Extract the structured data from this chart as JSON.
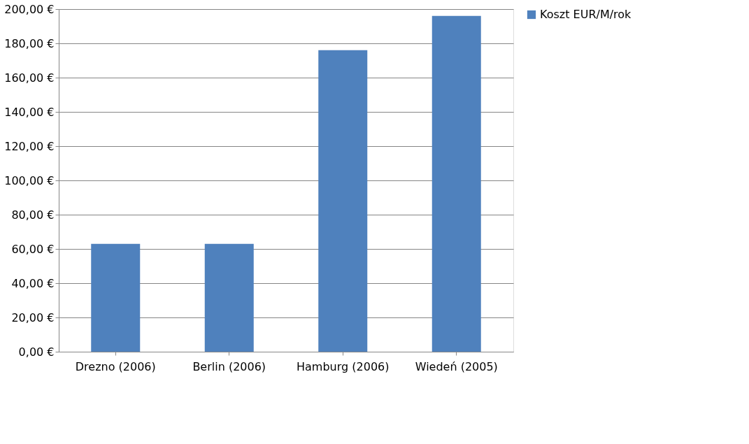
{
  "chart_data": {
    "type": "bar",
    "categories": [
      "Drezno (2006)",
      "Berlin (2006)",
      "Hamburg (2006)",
      "Wiedeń (2005)"
    ],
    "series": [
      {
        "name": "Koszt EUR/M/rok",
        "color": "#4f81bd",
        "values": [
          63,
          63,
          176,
          196
        ]
      }
    ],
    "ylim": [
      0,
      200
    ],
    "yticks": [
      {
        "value": 0,
        "label": "0,00 €"
      },
      {
        "value": 20,
        "label": "20,00 €"
      },
      {
        "value": 40,
        "label": "40,00 €"
      },
      {
        "value": 60,
        "label": "60,00 €"
      },
      {
        "value": 80,
        "label": "80,00 €"
      },
      {
        "value": 100,
        "label": "100,00 €"
      },
      {
        "value": 120,
        "label": "120,00 €"
      },
      {
        "value": 140,
        "label": "140,00 €"
      },
      {
        "value": 160,
        "label": "160,00 €"
      },
      {
        "value": 180,
        "label": "180,00 €"
      },
      {
        "value": 200,
        "label": "200,00 €"
      }
    ],
    "grid": "y",
    "legend": "right"
  }
}
